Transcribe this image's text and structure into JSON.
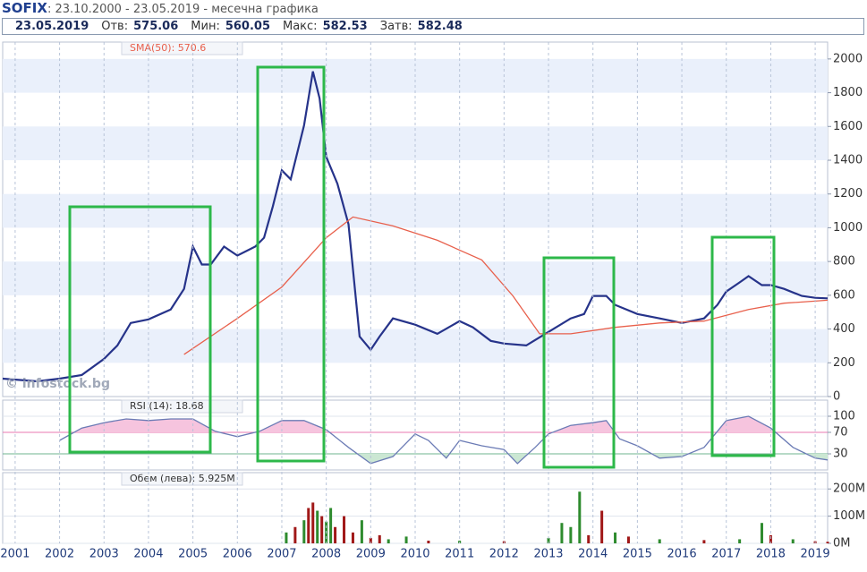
{
  "header": {
    "symbol": "SOFIX",
    "subtitle": ": 23.10.2000 - 23.05.2019 - месечна графика",
    "date": "23.05.2019",
    "items": [
      {
        "label": "Отв:",
        "value": 575.06
      },
      {
        "label": "Мин:",
        "value": 560.05
      },
      {
        "label": "Макс:",
        "value": 582.53
      },
      {
        "label": "Затв:",
        "value": 582.48
      }
    ]
  },
  "chart_data": [
    {
      "type": "line",
      "watermark": "© infostock.bg",
      "xlim": [
        2000.72,
        2019.28
      ],
      "ylim": [
        0,
        2100
      ],
      "yticks": [
        0,
        200,
        400,
        600,
        800,
        1000,
        1200,
        1400,
        1600,
        1800,
        2000
      ],
      "bands": true,
      "band_color": "#eaf0fb",
      "series": [
        {
          "color": "#26338a",
          "x": [
            2000.72,
            2001.5,
            2002.0,
            2002.5,
            2003.0,
            2003.3,
            2003.6,
            2004.0,
            2004.5,
            2004.8,
            2005.0,
            2005.2,
            2005.4,
            2005.7,
            2006.0,
            2006.4,
            2006.6,
            2006.8,
            2007.0,
            2007.2,
            2007.5,
            2007.7,
            2007.85,
            2008.0,
            2008.25,
            2008.5,
            2008.75,
            2009.0,
            2009.2,
            2009.5,
            2010.0,
            2010.5,
            2011.0,
            2011.3,
            2011.7,
            2012.0,
            2012.5,
            2013.0,
            2013.5,
            2013.8,
            2014.0,
            2014.3,
            2014.5,
            2015.0,
            2015.5,
            2016.0,
            2016.5,
            2016.8,
            2017.0,
            2017.3,
            2017.5,
            2017.8,
            2018.0,
            2018.3,
            2018.7,
            2019.0,
            2019.28
          ],
          "values": [
            106,
            90,
            106,
            128,
            223,
            303,
            436,
            457,
            516,
            638,
            888,
            782,
            782,
            888,
            835,
            888,
            941,
            1128,
            1340,
            1287,
            1606,
            1926,
            1766,
            1420,
            1261,
            1021,
            356,
            277,
            356,
            463,
            426,
            372,
            447,
            410,
            330,
            314,
            303,
            383,
            463,
            489,
            596,
            596,
            543,
            489,
            463,
            436,
            463,
            543,
            622,
            676,
            713,
            660,
            660,
            638,
            596,
            585,
            582
          ]
        },
        {
          "name": "SMA(50): 570.6",
          "color": "#e8604c",
          "x": [
            2004.8,
            2006.0,
            2007.0,
            2008.0,
            2008.6,
            2009.5,
            2010.5,
            2011.5,
            2012.2,
            2012.8,
            2013.5,
            2014.5,
            2015.5,
            2016.5,
            2017.5,
            2018.3,
            2019.28
          ],
          "values": [
            250,
            463,
            649,
            941,
            1064,
            1011,
            926,
            809,
            596,
            372,
            372,
            410,
            436,
            447,
            516,
            553,
            570.6
          ]
        }
      ]
    },
    {
      "type": "line",
      "xlim": [
        2000.72,
        2019.28
      ],
      "ylim": [
        0,
        130
      ],
      "yticks": [
        30,
        70,
        100
      ],
      "overbought": 70,
      "oversold": 30,
      "overbought_color": "#e879b0",
      "oversold_color": "#6fb58f",
      "overbought_fill": "#f6c4de",
      "oversold_fill": "#cbe7d3",
      "series": [
        {
          "name": "RSI (14): 18.68",
          "color": "#6b7bb5",
          "x": [
            2002.0,
            2002.5,
            2003.0,
            2003.5,
            2004.0,
            2004.5,
            2005.0,
            2005.5,
            2006.0,
            2006.5,
            2007.0,
            2007.5,
            2008.0,
            2008.5,
            2009.0,
            2009.5,
            2010.0,
            2010.3,
            2010.7,
            2011.0,
            2011.5,
            2012.0,
            2012.3,
            2012.7,
            2013.0,
            2013.5,
            2014.0,
            2014.3,
            2014.6,
            2015.0,
            2015.5,
            2016.0,
            2016.5,
            2017.0,
            2017.5,
            2018.0,
            2018.5,
            2019.0,
            2019.28
          ],
          "values": [
            55,
            78,
            88,
            95,
            92,
            95,
            95,
            72,
            62,
            72,
            92,
            92,
            75,
            42,
            12,
            25,
            67,
            55,
            22,
            55,
            45,
            38,
            12,
            42,
            67,
            83,
            88,
            92,
            58,
            45,
            22,
            25,
            42,
            92,
            100,
            78,
            42,
            22,
            18.68
          ]
        }
      ]
    },
    {
      "type": "bar",
      "xlim": [
        2000.72,
        2019.28
      ],
      "ylim": [
        0,
        260
      ],
      "yticks": [
        {
          "value": 0,
          "label": "0M"
        },
        {
          "value": 100,
          "label": "100M"
        },
        {
          "value": 200,
          "label": "200M"
        }
      ],
      "xticks": [
        2001,
        2002,
        2003,
        2004,
        2005,
        2006,
        2007,
        2008,
        2009,
        2010,
        2011,
        2012,
        2013,
        2014,
        2015,
        2016,
        2017,
        2018,
        2019
      ],
      "series": [
        {
          "name": "Обем (лева): 5.925M",
          "x": [
            2007.1,
            2007.3,
            2007.5,
            2007.6,
            2007.7,
            2007.8,
            2007.9,
            2008.0,
            2008.1,
            2008.2,
            2008.4,
            2008.6,
            2008.8,
            2009.0,
            2009.2,
            2009.4,
            2009.8,
            2010.3,
            2011.0,
            2012.0,
            2013.0,
            2013.3,
            2013.5,
            2013.7,
            2013.9,
            2014.2,
            2014.5,
            2014.8,
            2015.5,
            2016.5,
            2017.3,
            2017.8,
            2018.0,
            2018.5,
            2019.0,
            2019.28
          ],
          "values": [
            40,
            60,
            85,
            130,
            150,
            120,
            100,
            80,
            130,
            60,
            100,
            40,
            85,
            20,
            30,
            15,
            25,
            10,
            10,
            8,
            20,
            75,
            60,
            190,
            30,
            120,
            40,
            25,
            15,
            12,
            15,
            75,
            30,
            15,
            8,
            5.925
          ],
          "colors": [
            "#2e8b2e",
            "#a01818",
            "#2e8b2e",
            "#a01818",
            "#a01818",
            "#2e8b2e",
            "#a01818",
            "#2e8b2e",
            "#2e8b2e",
            "#a01818",
            "#a01818",
            "#a01818",
            "#2e8b2e",
            "#a01818",
            "#a01818",
            "#2e8b2e",
            "#2e8b2e",
            "#a01818",
            "#2e8b2e",
            "#a01818",
            "#2e8b2e",
            "#2e8b2e",
            "#2e8b2e",
            "#2e8b2e",
            "#a01818",
            "#a01818",
            "#2e8b2e",
            "#a01818",
            "#2e8b2e",
            "#a01818",
            "#2e8b2e",
            "#2e8b2e",
            "#a01818",
            "#2e8b2e",
            "#a01818",
            "#a01818"
          ]
        }
      ]
    }
  ]
}
